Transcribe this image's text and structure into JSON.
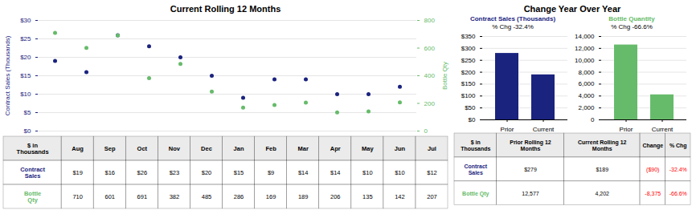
{
  "chart_data": [
    {
      "type": "line",
      "title": "Current Rolling 12 Months",
      "categories": [
        "Aug",
        "Sep",
        "Oct",
        "Nov",
        "Dec",
        "Jan",
        "Feb",
        "Mar",
        "Apr",
        "May",
        "Jun",
        "Jul"
      ],
      "series": [
        {
          "name": "Contract Sales (Thousands)",
          "color": "#1a237e",
          "marker": "o",
          "line_style": "solid",
          "values": [
            19,
            16,
            26,
            23,
            20,
            15,
            9,
            14,
            14,
            10,
            10,
            12
          ]
        },
        {
          "name": "Bottle Qty",
          "color": "#66bb6a",
          "marker": "o",
          "line_style": "solid",
          "axis": "y2",
          "values": [
            710,
            601,
            691,
            382,
            485,
            286,
            169,
            189,
            206,
            135,
            142,
            207
          ]
        }
      ],
      "ylabel": "Contract Sales (Thousands)",
      "y2label": "Bottle Qty",
      "ylim": [
        0,
        30
      ],
      "yticks": [
        {
          "value": 0,
          "label": "$0"
        },
        {
          "value": 5,
          "label": "$5"
        },
        {
          "value": 10,
          "label": "$10"
        },
        {
          "value": 15,
          "label": "$15"
        },
        {
          "value": 20,
          "label": "$20"
        },
        {
          "value": 25,
          "label": "$25"
        },
        {
          "value": 30,
          "label": "$30"
        }
      ],
      "y2lim": [
        0,
        800
      ],
      "y2ticks": [
        0,
        200,
        400,
        600,
        800
      ],
      "grid": true,
      "tick_labels": "y"
    },
    {
      "type": "table",
      "columns": [
        "$ in\nThousands",
        "Aug",
        "Sep",
        "Oct",
        "Nov",
        "Dec",
        "Jan",
        "Feb",
        "Mar",
        "Apr",
        "May",
        "Jun",
        "Jul"
      ],
      "rows": [
        [
          "Contract\nSales",
          "$19",
          "$16",
          "$26",
          "$23",
          "$20",
          "$15",
          "$9",
          "$14",
          "$14",
          "$10",
          "$10",
          "$12"
        ],
        [
          "Bottle\nQty",
          "710",
          "601",
          "691",
          "382",
          "485",
          "286",
          "169",
          "189",
          "206",
          "135",
          "142",
          "207"
        ]
      ],
      "colors": [
        [
          "#1a237e",
          null,
          null,
          null,
          null,
          null,
          null,
          null,
          null,
          null,
          null,
          null,
          null
        ],
        [
          "#66bb6a",
          null,
          null,
          null,
          null,
          null,
          null,
          null,
          null,
          null,
          null,
          null,
          null
        ]
      ]
    },
    {
      "type": "bar",
      "title": "Contract Sales (Thousands)",
      "subtitle": "% Chg -32.4%",
      "annotations": [
        "Change Year Over Year"
      ],
      "categories": [
        "Prior",
        "Current"
      ],
      "values": [
        279,
        189
      ],
      "color": "#1a237e",
      "ylim": [
        0,
        350
      ],
      "yticks": [
        {
          "value": 0,
          "label": "$0"
        },
        {
          "value": 50,
          "label": "$50"
        },
        {
          "value": 100,
          "label": "$100"
        },
        {
          "value": 150,
          "label": "$150"
        },
        {
          "value": 200,
          "label": "$200"
        },
        {
          "value": 250,
          "label": "$250"
        },
        {
          "value": 300,
          "label": "$300"
        },
        {
          "value": 350,
          "label": "$350"
        }
      ],
      "grid": true
    },
    {
      "type": "bar",
      "title": "Bottle Quantity",
      "subtitle": "% Chg -66.6%",
      "categories": [
        "Prior",
        "Current"
      ],
      "values": [
        12577,
        4202
      ],
      "color": "#66bb6a",
      "ylim": [
        0,
        14000
      ],
      "yticks": [
        0,
        {
          "value": 2000,
          "label": "2,000"
        },
        {
          "value": 4000,
          "label": "4,000"
        },
        {
          "value": 6000,
          "label": "6,000"
        },
        {
          "value": 8000,
          "label": "8,000"
        },
        {
          "value": 10000,
          "label": "10,000"
        },
        {
          "value": 12000,
          "label": "12,000"
        },
        {
          "value": 14000,
          "label": "14,000"
        }
      ],
      "grid": true
    },
    {
      "type": "table",
      "columns": [
        "$ in\nThousands",
        "Prior Rolling 12\nMonths",
        "Current Rolling 12\nMonths",
        "Change",
        "% Chg"
      ],
      "rows": [
        [
          "Contract\nSales",
          "$279",
          "$189",
          "($90)",
          "-32.4%"
        ],
        [
          "Bottle Qty",
          "12,577",
          "4,202",
          "-8,375",
          "-66.6%"
        ]
      ],
      "colors": [
        [
          "#1a237e",
          null,
          null,
          "red",
          "red"
        ],
        [
          "#66bb6a",
          null,
          null,
          "red",
          "red"
        ]
      ]
    }
  ]
}
